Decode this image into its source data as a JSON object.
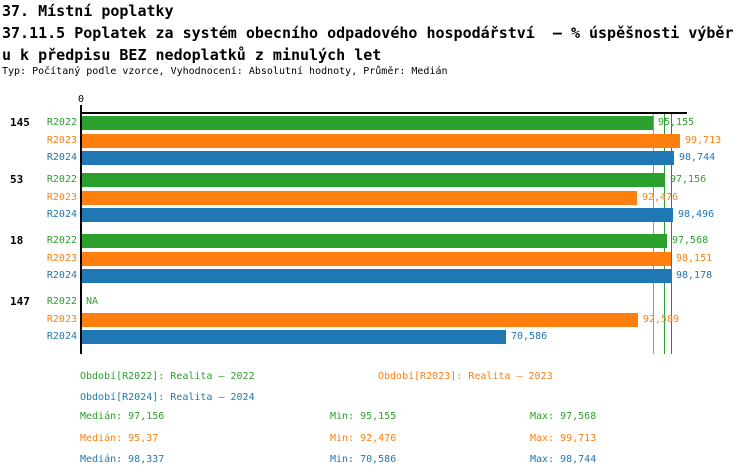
{
  "header": {
    "title": "37. Místní poplatky",
    "subtitle_line1": "37.11.5 Poplatek za systém obecního odpadového hospodářství  – % úspěšnosti výběr",
    "subtitle_line2": "u k předpisu BEZ nedoplatků z minulých let",
    "meta": "Typ: Počítaný podle vzorce, Vyhodnocení: Absolutní hodnoty, Průměr: Medián"
  },
  "chart_data": {
    "type": "bar",
    "orientation": "horizontal",
    "categories": [
      "145",
      "53",
      "18",
      "147"
    ],
    "series": [
      {
        "name": "R2022",
        "color": "#2ca02c",
        "values": [
          95.155,
          97.156,
          97.568,
          null
        ],
        "value_labels": [
          "95,155",
          "97,156",
          "97,568",
          "NA"
        ]
      },
      {
        "name": "R2023",
        "color": "#ff7f0e",
        "values": [
          99.713,
          92.476,
          98.151,
          92.589
        ],
        "value_labels": [
          "99,713",
          "92,476",
          "98,151",
          "92,589"
        ]
      },
      {
        "name": "R2024",
        "color": "#1f77b4",
        "values": [
          98.744,
          98.496,
          98.178,
          70.586
        ],
        "value_labels": [
          "98,744",
          "98,496",
          "98,178",
          "70,586"
        ]
      }
    ],
    "reference_lines": [
      {
        "name": "median-R2022",
        "value": 97.156,
        "color": "#2ca02c"
      },
      {
        "name": "median-R2023",
        "value": 95.37,
        "color": "#ff7f0e"
      },
      {
        "name": "median-R2024",
        "value": 98.337,
        "color": "#1f77b4"
      }
    ],
    "xlim": [
      0,
      101
    ],
    "x_tick_labels": [
      "0"
    ],
    "na_label": "NA",
    "grid": false,
    "legend_position": "bottom",
    "stats": {
      "R2022": {
        "median": 97.156,
        "min": 95.155,
        "max": 97.568
      },
      "R2023": {
        "median": 95.37,
        "min": 92.476,
        "max": 99.713
      },
      "R2024": {
        "median": 98.337,
        "min": 70.586,
        "max": 98.744
      }
    }
  },
  "legend": [
    {
      "series": "R2022",
      "text": "Období[R2022]: Realita – 2022",
      "color": "#2ca02c"
    },
    {
      "series": "R2023",
      "text": "Období[R2023]: Realita – 2023",
      "color": "#ff7f0e"
    },
    {
      "series": "R2024",
      "text": "Období[R2024]: Realita – 2024",
      "color": "#1f77b4"
    }
  ],
  "stats_rows": [
    {
      "series": "R2022",
      "color": "#2ca02c",
      "median_text": "Medián: 97,156",
      "min_text": "Min: 95,155",
      "max_text": "Max: 97,568"
    },
    {
      "series": "R2023",
      "color": "#ff7f0e",
      "median_text": "Medián: 95,37",
      "min_text": "Min: 92,476",
      "max_text": "Max: 99,713"
    },
    {
      "series": "R2024",
      "color": "#1f77b4",
      "median_text": "Medián: 98,337",
      "min_text": "Min: 70,586",
      "max_text": "Max: 98,744"
    }
  ]
}
